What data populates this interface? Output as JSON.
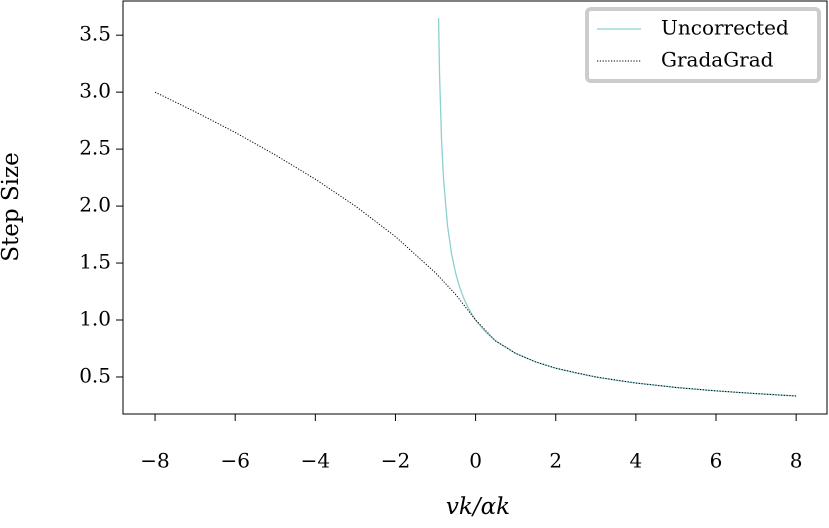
{
  "chart_data": {
    "type": "line",
    "xlabel": "vk/αk",
    "ylabel": "Step Size",
    "xlim": [
      -8.8,
      8.77
    ],
    "ylim": [
      0.175,
      3.8
    ],
    "xticks": [
      {
        "value": -8,
        "label": "−8"
      },
      {
        "value": -6,
        "label": "−6"
      },
      {
        "value": -4,
        "label": "−4"
      },
      {
        "value": -2,
        "label": "−2"
      },
      0,
      2,
      4,
      6,
      8
    ],
    "yticks": [
      0.5,
      {
        "value": 1,
        "label": "1.0"
      },
      1.5,
      {
        "value": 2,
        "label": "2.0"
      },
      2.5,
      {
        "value": 3,
        "label": "3.0"
      },
      3.5
    ],
    "legend": "upper right",
    "series": [
      {
        "name": "Uncorrected",
        "color": "#8ecfd0",
        "dash": "solid",
        "x": [
          -0.925,
          -0.9,
          -0.85,
          -0.8,
          -0.7,
          -0.6,
          -0.5,
          -0.4,
          -0.3,
          -0.2,
          -0.1,
          0,
          0.25,
          0.5,
          1,
          1.5,
          2,
          2.5,
          3,
          3.5,
          4,
          5,
          6,
          7,
          8
        ],
        "values": [
          3.651,
          3.162,
          2.582,
          2.236,
          1.826,
          1.581,
          1.414,
          1.291,
          1.195,
          1.118,
          1.054,
          1,
          0.894,
          0.816,
          0.707,
          0.632,
          0.577,
          0.535,
          0.5,
          0.471,
          0.447,
          0.408,
          0.378,
          0.354,
          0.333
        ]
      },
      {
        "name": "GradaGrad",
        "color": "#000000",
        "dash": "dotted",
        "x": [
          -8,
          -7,
          -6,
          -5,
          -4,
          -3,
          -2,
          -1,
          -0.5,
          0,
          0.5,
          1,
          1.5,
          2,
          3,
          4,
          5,
          6,
          7,
          8
        ],
        "values": [
          3,
          2.828,
          2.646,
          2.449,
          2.236,
          2,
          1.732,
          1.414,
          1.225,
          1,
          0.816,
          0.707,
          0.632,
          0.577,
          0.5,
          0.447,
          0.408,
          0.378,
          0.354,
          0.333
        ]
      }
    ]
  }
}
